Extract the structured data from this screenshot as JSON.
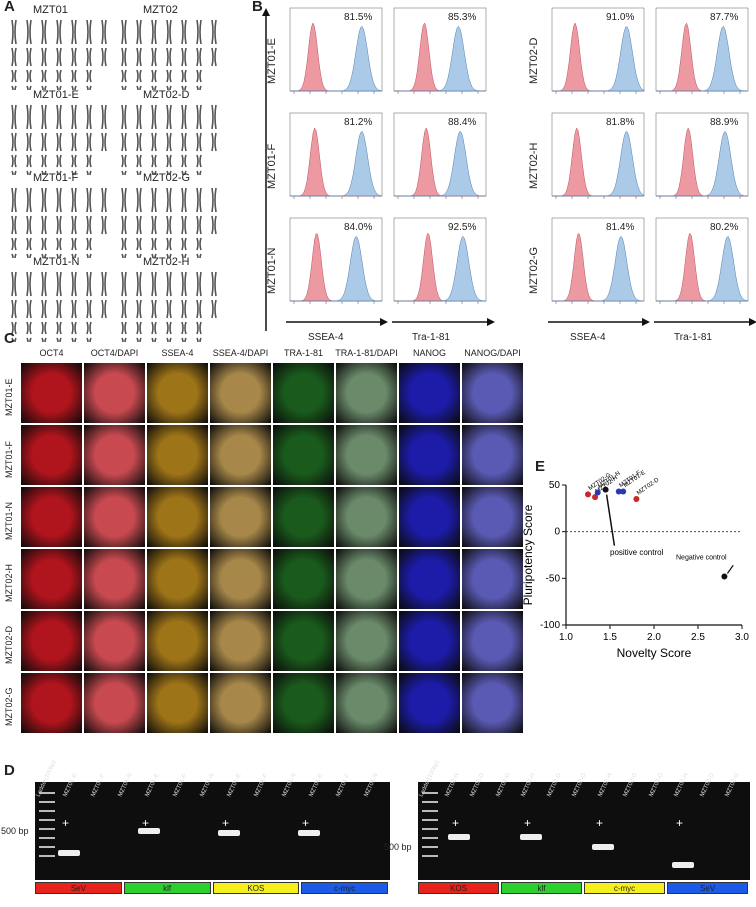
{
  "panels": {
    "a": "A",
    "b": "B",
    "c": "C",
    "d": "D",
    "e": "E"
  },
  "panelA": {
    "karyotypes": [
      "MZT01",
      "MZT02",
      "MZT01-E",
      "MZT02-D",
      "MZT01-F",
      "MZT02-G",
      "MZT01-N",
      "MZT02-H"
    ]
  },
  "panelB": {
    "left_rows": [
      "MZT01-E",
      "MZT01-F",
      "MZT01-N"
    ],
    "right_rows": [
      "MZT02-D",
      "MZT02-H",
      "MZT02-G"
    ],
    "x_axis_left": [
      "SSEA-4",
      "Tra-1-81"
    ],
    "x_axis_right": [
      "SSEA-4",
      "Tra-1-81"
    ],
    "percentages": {
      "left": [
        [
          "81.5%",
          "85.3%"
        ],
        [
          "81.2%",
          "88.4%"
        ],
        [
          "84.0%",
          "92.5%"
        ]
      ],
      "right": [
        [
          "91.0%",
          "87.7%"
        ],
        [
          "81.8%",
          "88.9%"
        ],
        [
          "81.4%",
          "80.2%"
        ]
      ]
    },
    "colors": {
      "negative": "#e8808a",
      "positive": "#8fb8e0"
    }
  },
  "panelC": {
    "columns": [
      "OCT4",
      "OCT4/DAPI",
      "SSEA-4",
      "SSEA-4/DAPI",
      "TRA-1-81",
      "TRA-1-81/DAPI",
      "NANOG",
      "NANOG/DAPI"
    ],
    "rows": [
      "MZT01-E",
      "MZT01-F",
      "MZT01-N",
      "MZT02-H",
      "MZT02-D",
      "MZT02-G"
    ],
    "column_colors": [
      "#b0141c",
      "#c84a50",
      "#9e7418",
      "#a8884a",
      "#1a5a1c",
      "#6a8a6a",
      "#1c1ca8",
      "#5a5ab4"
    ]
  },
  "panelD": {
    "left_lanes": [
      "Ladder(100bp)",
      "MZT01-E",
      "MZT01-F",
      "MZT01-N",
      "MZT01-E",
      "MZT01-F",
      "MZT01-N",
      "MZT01-E",
      "MZT01-F",
      "MZT01-N",
      "MZT01-E",
      "MZT01-F",
      "MZT01-N"
    ],
    "right_lanes": [
      "Ladder(100bp)",
      "MZT02-H",
      "MZT02-D",
      "MZT02-G",
      "MZT02-H",
      "MZT02-D",
      "MZT02-G",
      "MZT02-H",
      "MZT02-D",
      "MZT02-G",
      "MZT02-H",
      "MZT02-D",
      "MZT02-G"
    ],
    "marker": "500 bp",
    "plus": "+",
    "left_groups": [
      {
        "label": "SeV",
        "color": "#e8231c"
      },
      {
        "label": "klf",
        "color": "#2ed02e"
      },
      {
        "label": "KOS",
        "color": "#f5f01c"
      },
      {
        "label": "c-myc",
        "color": "#1c5ae8"
      }
    ],
    "right_groups": [
      {
        "label": "KOS",
        "color": "#e8231c"
      },
      {
        "label": "klf",
        "color": "#2ed02e"
      },
      {
        "label": "c-myc",
        "color": "#f5f01c"
      },
      {
        "label": "SeV",
        "color": "#1c5ae8"
      }
    ]
  },
  "chart_data": {
    "type": "scatter",
    "xlabel": "Novelty Score",
    "ylabel": "Pluripotency Score",
    "xlim": [
      1.0,
      3.0
    ],
    "ylim": [
      -100,
      50
    ],
    "xticks": [
      "1.0",
      "1.5",
      "2.0",
      "2.5",
      "3.0"
    ],
    "yticks": [
      "50",
      "0",
      "-50",
      "-100"
    ],
    "points": [
      {
        "label": "MZT02-G",
        "x": 1.25,
        "y": 40,
        "color": "#c82828"
      },
      {
        "label": "MZT02-H",
        "x": 1.33,
        "y": 37,
        "color": "#c82828"
      },
      {
        "label": "MZT01-N",
        "x": 1.36,
        "y": 42,
        "color": "#2838b4"
      },
      {
        "label": "",
        "x": 1.45,
        "y": 45,
        "color": "#111111"
      },
      {
        "label": "MZT01-F",
        "x": 1.6,
        "y": 43,
        "color": "#2838b4"
      },
      {
        "label": "MZT01-E",
        "x": 1.65,
        "y": 43,
        "color": "#2838b4"
      },
      {
        "label": "MZT02-D",
        "x": 1.8,
        "y": 35,
        "color": "#c82828"
      },
      {
        "label": "",
        "x": 2.8,
        "y": -48,
        "color": "#111111"
      }
    ],
    "annotations": {
      "positive": "positive control",
      "negative": "Negative control"
    }
  }
}
